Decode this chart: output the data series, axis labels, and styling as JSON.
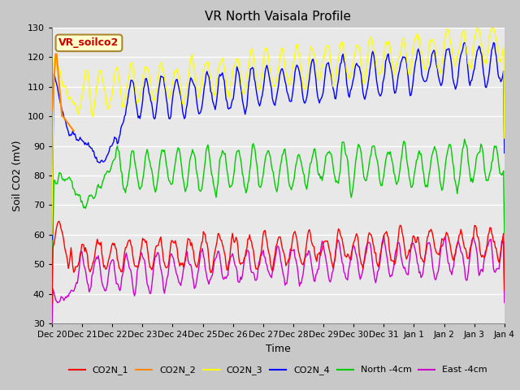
{
  "title": "VR North Vaisala Profile",
  "xlabel": "Time",
  "ylabel": "Soil CO2 (mV)",
  "ylim": [
    30,
    130
  ],
  "yticks": [
    30,
    40,
    50,
    60,
    70,
    80,
    90,
    100,
    110,
    120,
    130
  ],
  "annotation_text": "VR_soilco2",
  "annotation_bg": "#ffffcc",
  "annotation_edge": "#aa8833",
  "annotation_text_color": "#cc0000",
  "fig_bg_color": "#c8c8c8",
  "plot_bg_color": "#e8e8e8",
  "line_colors": {
    "CO2N_1": "#ff0000",
    "CO2N_2": "#ff8800",
    "CO2N_3": "#ffff00",
    "CO2N_4": "#0000ff",
    "North_4cm": "#00cc00",
    "East_4cm": "#cc00cc"
  },
  "x_tick_labels": [
    "Dec 20",
    "Dec 21",
    "Dec 22",
    "Dec 23",
    "Dec 24",
    "Dec 25",
    "Dec 26",
    "Dec 27",
    "Dec 28",
    "Dec 29",
    "Dec 30",
    "Dec 31",
    "Jan 1",
    "Jan 2",
    "Jan 3",
    "Jan 4"
  ],
  "n_points": 500,
  "seed": 7
}
